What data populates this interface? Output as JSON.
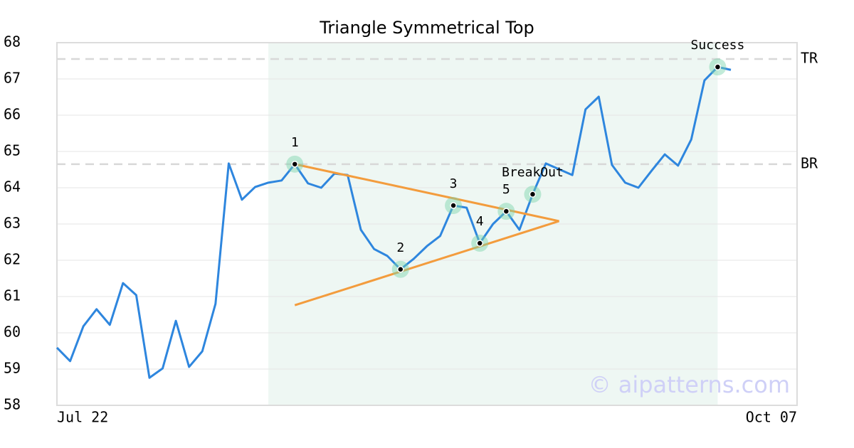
{
  "chart_data": {
    "type": "line",
    "title": "Triangle Symmetrical Top",
    "categories": [
      "Jul 22",
      null,
      null,
      null,
      null,
      null,
      null,
      null,
      null,
      null,
      null,
      null,
      null,
      null,
      null,
      null,
      null,
      null,
      null,
      null,
      null,
      null,
      null,
      null,
      null,
      null,
      null,
      null,
      null,
      null,
      null,
      null,
      null,
      null,
      null,
      null,
      null,
      null,
      null,
      null,
      null,
      null,
      null,
      null,
      null,
      null,
      null,
      null,
      null,
      null,
      null,
      "Oct 07"
    ],
    "values": [
      59.59,
      59.22,
      60.18,
      60.65,
      60.22,
      61.37,
      61.04,
      58.76,
      59.02,
      60.33,
      59.06,
      59.49,
      60.8,
      64.67,
      63.67,
      64.02,
      64.14,
      64.2,
      64.65,
      64.12,
      64.0,
      64.39,
      64.35,
      62.84,
      62.31,
      62.12,
      61.75,
      62.04,
      62.39,
      62.67,
      63.51,
      63.45,
      62.47,
      63.0,
      63.35,
      62.84,
      63.82,
      64.67,
      64.51,
      64.35,
      66.16,
      66.51,
      64.63,
      64.14,
      64.0,
      64.47,
      64.92,
      64.61,
      65.33,
      66.96,
      67.33,
      67.25
    ],
    "color": "#2e86de",
    "ylim": [
      58,
      68
    ],
    "yticks": [
      58,
      59,
      60,
      61,
      62,
      63,
      64,
      65,
      66,
      67,
      68
    ],
    "grid": true,
    "shade": {
      "from": 16,
      "to": 50,
      "color": "#eef7f3"
    },
    "levels": [
      {
        "label": "TR",
        "value": 67.55
      },
      {
        "label": "BR",
        "value": 64.65
      }
    ],
    "lines": [
      {
        "x": [
          18,
          38
        ],
        "y": [
          64.65,
          63.08
        ],
        "color": "#f39c3d"
      },
      {
        "x": [
          18,
          38
        ],
        "y": [
          60.76,
          63.08
        ],
        "color": "#f39c3d"
      }
    ],
    "annotations": [
      {
        "label": "1",
        "index": 18,
        "y": 64.65
      },
      {
        "label": "2",
        "index": 26,
        "y": 61.75
      },
      {
        "label": "3",
        "index": 30,
        "y": 63.51
      },
      {
        "label": "4",
        "index": 32,
        "y": 62.47
      },
      {
        "label": "5",
        "index": 34,
        "y": 63.35
      },
      {
        "label": "BreakOut",
        "index": 36,
        "y": 63.82
      },
      {
        "label": "Success",
        "index": 50,
        "y": 67.33
      }
    ],
    "watermark": "© aipatterns.com"
  }
}
